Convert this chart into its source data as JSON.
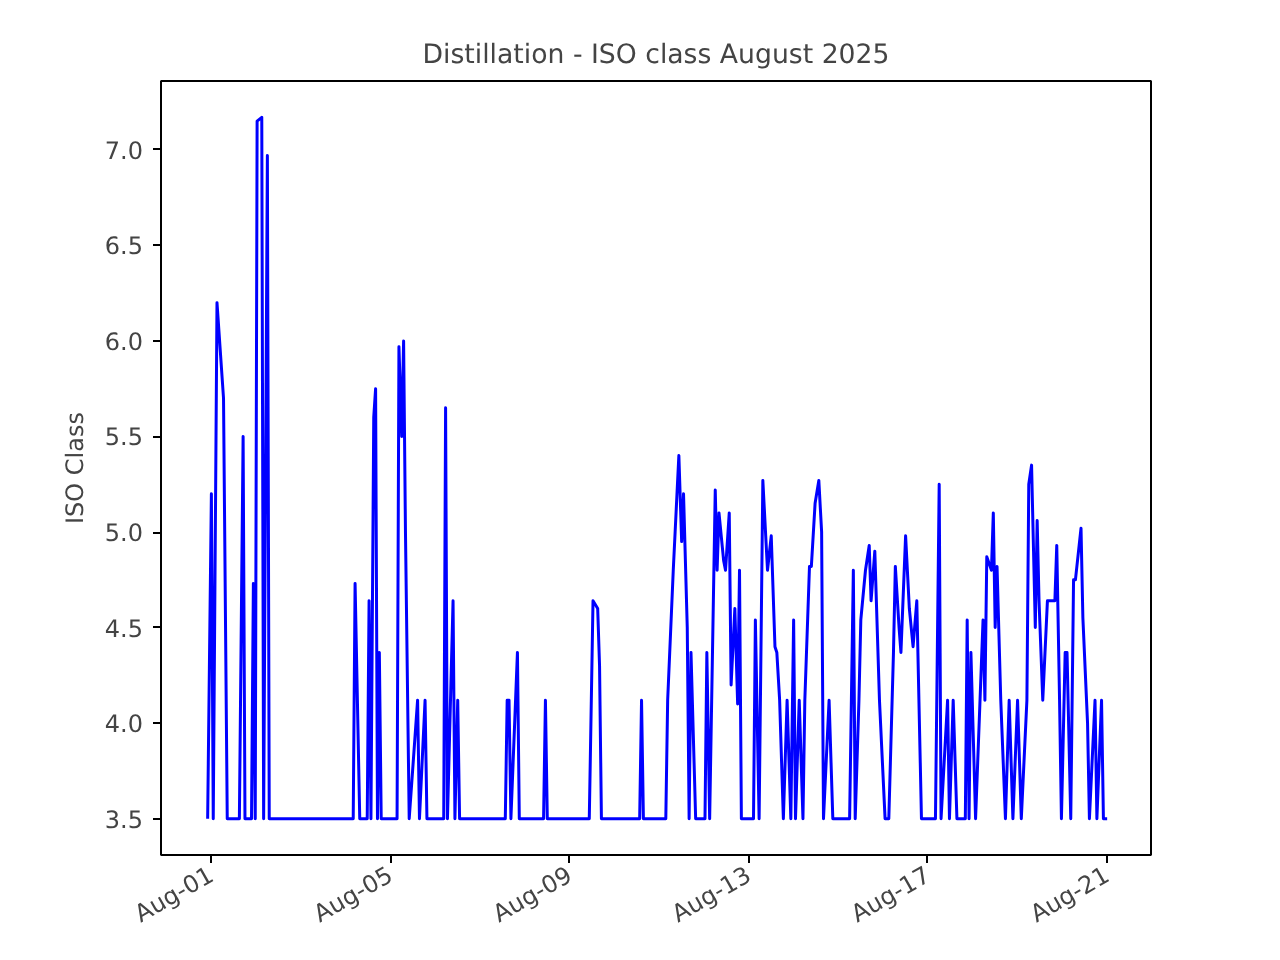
{
  "chart_data": {
    "type": "line",
    "title": "Distillation - ISO class August 2025",
    "ylabel": "ISO Class",
    "xlim": [
      "2025-07-30T21:00",
      "2025-08-21T23:30"
    ],
    "ylim": [
      3.31,
      7.36
    ],
    "xticks": [
      {
        "value": "2025-08-01",
        "label": "Aug-01"
      },
      {
        "value": "2025-08-05",
        "label": "Aug-05"
      },
      {
        "value": "2025-08-09",
        "label": "Aug-09"
      },
      {
        "value": "2025-08-13",
        "label": "Aug-13"
      },
      {
        "value": "2025-08-17",
        "label": "Aug-17"
      },
      {
        "value": "2025-08-21",
        "label": "Aug-21"
      }
    ],
    "yticks": [
      3.5,
      {
        "value": 4,
        "label": "4.0"
      },
      4.5,
      {
        "value": 5,
        "label": "5.0"
      },
      5.5,
      {
        "value": 6,
        "label": "6.0"
      },
      6.5,
      {
        "value": 7,
        "label": "7.0"
      }
    ],
    "grid": false,
    "line_style": "solid",
    "series": [
      {
        "color": "#0000ff",
        "x": [
          "2025-07-31T22:00",
          "2025-08-01T00:00",
          "2025-08-01T01:00",
          "2025-08-01T03:00",
          "2025-08-01T06:30",
          "2025-08-01T08:30",
          "2025-08-01T15:00",
          "2025-08-01T17:00",
          "2025-08-01T18:00",
          "2025-08-01T21:30",
          "2025-08-01T22:30",
          "2025-08-01T23:30",
          "2025-08-02T00:30",
          "2025-08-02T03:00",
          "2025-08-02T04:00",
          "2025-08-02T06:00",
          "2025-08-02T07:00",
          "2025-08-04T04:00",
          "2025-08-04T05:00",
          "2025-08-04T07:30",
          "2025-08-04T11:30",
          "2025-08-04T12:30",
          "2025-08-04T13:30",
          "2025-08-04T15:00",
          "2025-08-04T16:00",
          "2025-08-04T17:00",
          "2025-08-04T18:00",
          "2025-08-04T19:00",
          "2025-08-05T03:30",
          "2025-08-05T04:30",
          "2025-08-05T06:00",
          "2025-08-05T07:00",
          "2025-08-05T08:00",
          "2025-08-05T10:00",
          "2025-08-05T14:30",
          "2025-08-05T15:30",
          "2025-08-05T18:30",
          "2025-08-05T19:30",
          "2025-08-06T04:30",
          "2025-08-06T05:30",
          "2025-08-06T06:30",
          "2025-08-06T09:30",
          "2025-08-06T10:30",
          "2025-08-06T12:00",
          "2025-08-06T13:00",
          "2025-08-07T13:30",
          "2025-08-07T14:30",
          "2025-08-07T15:30",
          "2025-08-07T16:30",
          "2025-08-07T20:00",
          "2025-08-07T21:00",
          "2025-08-08T10:00",
          "2025-08-08T11:00",
          "2025-08-08T12:00",
          "2025-08-09T10:30",
          "2025-08-09T12:30",
          "2025-08-09T15:00",
          "2025-08-09T16:00",
          "2025-08-09T17:00",
          "2025-08-10T13:30",
          "2025-08-10T14:30",
          "2025-08-10T15:30",
          "2025-08-11T03:30",
          "2025-08-11T04:30",
          "2025-08-11T07:30",
          "2025-08-11T08:30",
          "2025-08-11T10:30",
          "2025-08-11T12:00",
          "2025-08-11T13:00",
          "2025-08-11T15:00",
          "2025-08-11T16:00",
          "2025-08-11T17:00",
          "2025-08-11T19:30",
          "2025-08-12T00:30",
          "2025-08-12T01:30",
          "2025-08-12T03:00",
          "2025-08-12T06:00",
          "2025-08-12T07:00",
          "2025-08-12T08:00",
          "2025-08-12T10:30",
          "2025-08-12T11:30",
          "2025-08-12T13:30",
          "2025-08-12T14:30",
          "2025-08-12T16:30",
          "2025-08-12T18:00",
          "2025-08-12T19:00",
          "2025-08-12T20:00",
          "2025-08-12T23:00",
          "2025-08-13T02:30",
          "2025-08-13T03:30",
          "2025-08-13T05:30",
          "2025-08-13T07:30",
          "2025-08-13T10:00",
          "2025-08-13T12:00",
          "2025-08-13T14:00",
          "2025-08-13T15:00",
          "2025-08-13T16:30",
          "2025-08-13T18:30",
          "2025-08-13T20:30",
          "2025-08-13T22:30",
          "2025-08-14T00:00",
          "2025-08-14T01:00",
          "2025-08-14T03:00",
          "2025-08-14T05:00",
          "2025-08-14T06:00",
          "2025-08-14T08:30",
          "2025-08-14T09:30",
          "2025-08-14T11:30",
          "2025-08-14T13:30",
          "2025-08-14T15:00",
          "2025-08-14T16:00",
          "2025-08-14T19:00",
          "2025-08-14T21:00",
          "2025-08-15T06:00",
          "2025-08-15T08:00",
          "2025-08-15T09:00",
          "2025-08-15T11:00",
          "2025-08-15T12:00",
          "2025-08-15T14:30",
          "2025-08-15T16:30",
          "2025-08-15T17:30",
          "2025-08-15T19:30",
          "2025-08-15T22:00",
          "2025-08-16T01:00",
          "2025-08-16T03:00",
          "2025-08-16T05:30",
          "2025-08-16T06:30",
          "2025-08-16T08:30",
          "2025-08-16T09:30",
          "2025-08-16T12:00",
          "2025-08-16T14:00",
          "2025-08-16T16:00",
          "2025-08-16T18:00",
          "2025-08-16T20:30",
          "2025-08-16T22:30",
          "2025-08-17T04:00",
          "2025-08-17T06:00",
          "2025-08-17T07:00",
          "2025-08-17T10:30",
          "2025-08-17T11:30",
          "2025-08-17T13:30",
          "2025-08-17T15:30",
          "2025-08-17T20:00",
          "2025-08-17T21:00",
          "2025-08-17T22:00",
          "2025-08-17T23:00",
          "2025-08-18T01:30",
          "2025-08-18T05:30",
          "2025-08-18T06:30",
          "2025-08-18T07:30",
          "2025-08-18T10:00",
          "2025-08-18T11:00",
          "2025-08-18T12:00",
          "2025-08-18T13:00",
          "2025-08-18T15:00",
          "2025-08-18T17:30",
          "2025-08-18T19:30",
          "2025-08-18T21:30",
          "2025-08-19T00:00",
          "2025-08-19T02:00",
          "2025-08-19T05:00",
          "2025-08-19T06:00",
          "2025-08-19T07:30",
          "2025-08-19T09:30",
          "2025-08-19T10:30",
          "2025-08-19T11:30",
          "2025-08-19T13:30",
          "2025-08-19T16:00",
          "2025-08-19T18:00",
          "2025-08-19T20:00",
          "2025-08-19T21:00",
          "2025-08-19T22:30",
          "2025-08-19T23:30",
          "2025-08-20T01:30",
          "2025-08-20T02:30",
          "2025-08-20T04:30",
          "2025-08-20T06:00",
          "2025-08-20T07:00",
          "2025-08-20T09:00",
          "2025-08-20T10:00",
          "2025-08-20T11:00",
          "2025-08-20T13:30",
          "2025-08-20T14:30",
          "2025-08-20T17:30",
          "2025-08-20T18:30",
          "2025-08-20T21:00",
          "2025-08-20T22:00",
          "2025-08-21T00:00"
        ],
        "values": [
          3.5,
          5.2,
          3.5,
          6.2,
          5.7,
          3.5,
          3.5,
          5.5,
          3.5,
          3.5,
          4.73,
          3.5,
          7.15,
          7.17,
          3.5,
          6.97,
          3.5,
          3.5,
          4.73,
          3.5,
          3.5,
          4.64,
          3.5,
          5.6,
          5.75,
          3.5,
          4.37,
          3.5,
          3.5,
          5.97,
          5.5,
          6.0,
          5.0,
          3.5,
          4.12,
          3.5,
          4.12,
          3.5,
          3.5,
          5.65,
          3.5,
          4.64,
          3.5,
          4.12,
          3.5,
          3.5,
          4.12,
          4.12,
          3.5,
          4.37,
          3.5,
          3.5,
          4.12,
          3.5,
          3.5,
          4.64,
          4.6,
          4.3,
          3.5,
          3.5,
          4.12,
          3.5,
          3.5,
          4.12,
          4.8,
          5.0,
          5.4,
          4.95,
          5.2,
          4.5,
          3.5,
          4.37,
          3.5,
          3.5,
          4.37,
          3.5,
          5.22,
          4.8,
          5.1,
          4.85,
          4.8,
          5.1,
          4.2,
          4.6,
          4.1,
          4.8,
          3.5,
          3.5,
          3.5,
          4.54,
          3.5,
          5.27,
          4.8,
          4.98,
          4.4,
          4.37,
          4.12,
          3.5,
          4.12,
          3.5,
          4.54,
          3.5,
          4.12,
          3.5,
          4.12,
          4.82,
          4.82,
          5.15,
          5.27,
          5.0,
          3.5,
          4.12,
          3.5,
          3.5,
          4.8,
          3.5,
          4.12,
          4.54,
          4.8,
          4.93,
          4.64,
          4.9,
          4.12,
          3.5,
          3.5,
          4.37,
          4.82,
          4.5,
          4.37,
          4.98,
          4.6,
          4.4,
          4.64,
          3.5,
          3.5,
          3.5,
          5.25,
          3.5,
          4.12,
          3.5,
          4.12,
          3.5,
          3.5,
          4.54,
          3.5,
          4.37,
          3.5,
          4.54,
          4.12,
          4.87,
          4.8,
          5.1,
          4.5,
          4.82,
          4.12,
          3.5,
          4.12,
          3.5,
          4.12,
          3.5,
          4.12,
          5.25,
          5.35,
          4.5,
          5.06,
          4.64,
          4.12,
          4.64,
          4.64,
          4.64,
          4.93,
          4.12,
          3.5,
          4.37,
          4.37,
          3.5,
          4.75,
          4.75,
          4.93,
          5.02,
          4.55,
          4.0,
          3.5,
          4.12,
          3.5,
          4.12,
          3.5,
          3.5
        ]
      }
    ]
  }
}
